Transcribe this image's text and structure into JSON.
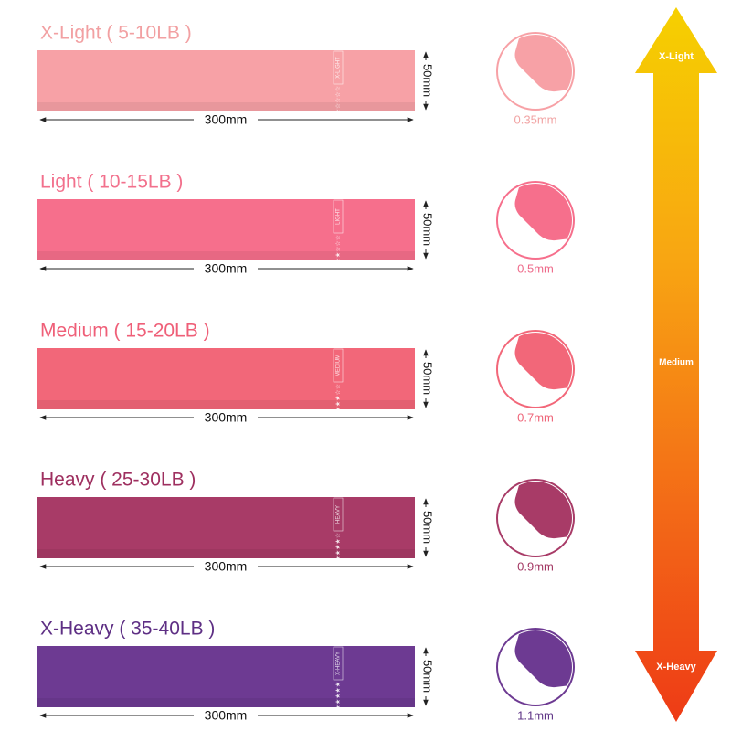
{
  "bands": [
    {
      "title": "X-Light ( 5-10LB )",
      "tag": "X-LIGHT",
      "rating": "★☆☆☆☆",
      "length": "300mm",
      "width": "50mm",
      "thickness": "0.35mm",
      "color": "#f7a1a6",
      "title_color": "#f2a0a2",
      "thickness_color": "#f1a3a3"
    },
    {
      "title": "Light ( 10-15LB )",
      "tag": "LIGHT",
      "rating": "★★☆☆☆",
      "length": "300mm",
      "width": "50mm",
      "thickness": "0.5mm",
      "color": "#f66f8c",
      "title_color": "#f2708c",
      "thickness_color": "#ee6a8a"
    },
    {
      "title": "Medium ( 15-20LB )",
      "tag": "MEDIUM",
      "rating": "★★★☆☆",
      "length": "300mm",
      "width": "50mm",
      "thickness": "0.7mm",
      "color": "#f26779",
      "title_color": "#ef5f78",
      "thickness_color": "#ee6478"
    },
    {
      "title": "Heavy ( 25-30LB )",
      "tag": "HEAVY",
      "rating": "★★★★☆",
      "length": "300mm",
      "width": "50mm",
      "thickness": "0.9mm",
      "color": "#a83b67",
      "title_color": "#9e2f5f",
      "thickness_color": "#a23662"
    },
    {
      "title": "X-Heavy ( 35-40LB )",
      "tag": "X-HEAVY",
      "rating": "★★★★★",
      "length": "300mm",
      "width": "50mm",
      "thickness": "1.1mm",
      "color": "#6d3a92",
      "title_color": "#5e2f84",
      "thickness_color": "#5f3586"
    }
  ],
  "scale": {
    "top": "X-Light",
    "middle": "Medium",
    "bottom": "X-Heavy"
  }
}
